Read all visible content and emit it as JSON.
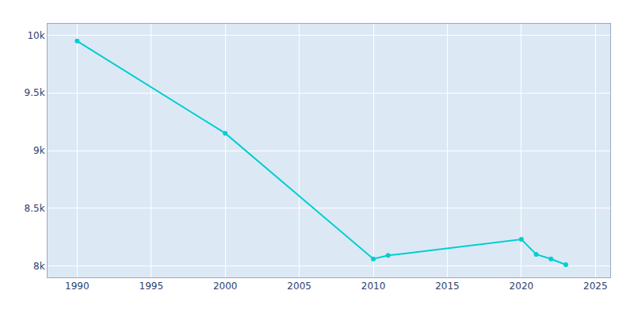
{
  "chart_data": {
    "type": "line",
    "x": [
      1990,
      2000,
      2010,
      2011,
      2020,
      2021,
      2022,
      2023
    ],
    "values": [
      9950,
      9150,
      8060,
      8090,
      8230,
      8100,
      8060,
      8010
    ],
    "color": "#00CED1",
    "marker": "circle",
    "xlim": [
      1988,
      2026
    ],
    "ylim": [
      7900,
      10100
    ],
    "xticks": [
      1990,
      1995,
      2000,
      2005,
      2010,
      2015,
      2020,
      2025
    ],
    "yticks": [
      {
        "value": 8000,
        "label": "8k"
      },
      {
        "value": 8500,
        "label": "8.5k"
      },
      {
        "value": 9000,
        "label": "9k"
      },
      {
        "value": 9500,
        "label": "9.5k"
      },
      {
        "value": 10000,
        "label": "10k"
      }
    ],
    "grid": true
  }
}
